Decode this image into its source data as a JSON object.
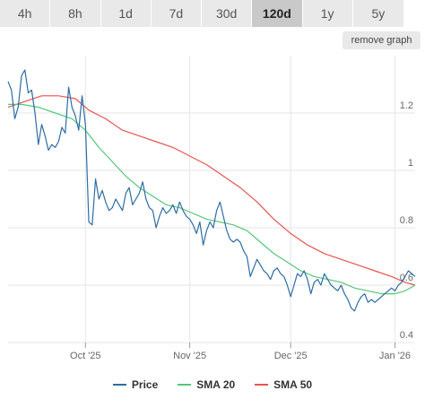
{
  "tabs": [
    {
      "label": "4h",
      "active": false
    },
    {
      "label": "8h",
      "active": false
    },
    {
      "label": "1d",
      "active": false
    },
    {
      "label": "7d",
      "active": false
    },
    {
      "label": "30d",
      "active": false
    },
    {
      "label": "120d",
      "active": true
    },
    {
      "label": "1y",
      "active": false
    },
    {
      "label": "5y",
      "active": false
    }
  ],
  "remove_graph_label": "remove graph",
  "colors": {
    "price": "#2e6da4",
    "sma20": "#52c77a",
    "sma50": "#e8544f",
    "grid": "#e6e6e6",
    "axis_text": "#666666"
  },
  "chart_data": {
    "type": "line",
    "title": "",
    "xlabel": "",
    "ylabel": "",
    "ylim": [
      0.4,
      1.4
    ],
    "yticks": [
      0.4,
      0.6,
      0.8,
      1,
      1.2
    ],
    "yticks_labels": [
      "0.4",
      "0.6",
      "0.8",
      "1",
      "1.2"
    ],
    "xlim": [
      "2025-09-08",
      "2026-01-07"
    ],
    "xticks": [
      {
        "date": "2025-10-01",
        "label": "Oct '25"
      },
      {
        "date": "2025-11-01",
        "label": "Nov '25"
      },
      {
        "date": "2025-12-01",
        "label": "Dec '25"
      },
      {
        "date": "2026-01-01",
        "label": "Jan '26"
      }
    ],
    "legend_position": "bottom",
    "grid": true,
    "series": [
      {
        "name": "Price",
        "color": "#2e6da4",
        "points": [
          [
            "2025-09-08",
            1.31
          ],
          [
            "2025-09-09",
            1.28
          ],
          [
            "2025-09-10",
            1.18
          ],
          [
            "2025-09-11",
            1.22
          ],
          [
            "2025-09-12",
            1.33
          ],
          [
            "2025-09-13",
            1.35
          ],
          [
            "2025-09-14",
            1.27
          ],
          [
            "2025-09-15",
            1.28
          ],
          [
            "2025-09-16",
            1.2
          ],
          [
            "2025-09-17",
            1.09
          ],
          [
            "2025-09-18",
            1.16
          ],
          [
            "2025-09-19",
            1.12
          ],
          [
            "2025-09-20",
            1.07
          ],
          [
            "2025-09-21",
            1.09
          ],
          [
            "2025-09-22",
            1.08
          ],
          [
            "2025-09-23",
            1.1
          ],
          [
            "2025-09-24",
            1.15
          ],
          [
            "2025-09-25",
            1.13
          ],
          [
            "2025-09-26",
            1.29
          ],
          [
            "2025-09-27",
            1.22
          ],
          [
            "2025-09-28",
            1.19
          ],
          [
            "2025-09-29",
            1.14
          ],
          [
            "2025-09-30",
            1.26
          ],
          [
            "2025-10-01",
            1.16
          ],
          [
            "2025-10-02",
            0.82
          ],
          [
            "2025-10-03",
            0.81
          ],
          [
            "2025-10-04",
            0.97
          ],
          [
            "2025-10-05",
            0.9
          ],
          [
            "2025-10-06",
            0.93
          ],
          [
            "2025-10-07",
            0.89
          ],
          [
            "2025-10-08",
            0.86
          ],
          [
            "2025-10-09",
            0.87
          ],
          [
            "2025-10-10",
            0.9
          ],
          [
            "2025-10-11",
            0.88
          ],
          [
            "2025-10-12",
            0.86
          ],
          [
            "2025-10-13",
            0.92
          ],
          [
            "2025-10-14",
            0.94
          ],
          [
            "2025-10-15",
            0.88
          ],
          [
            "2025-10-16",
            0.9
          ],
          [
            "2025-10-17",
            0.92
          ],
          [
            "2025-10-18",
            0.96
          ],
          [
            "2025-10-19",
            0.9
          ],
          [
            "2025-10-20",
            0.87
          ],
          [
            "2025-10-21",
            0.86
          ],
          [
            "2025-10-22",
            0.8
          ],
          [
            "2025-10-23",
            0.84
          ],
          [
            "2025-10-24",
            0.87
          ],
          [
            "2025-10-25",
            0.85
          ],
          [
            "2025-10-26",
            0.86
          ],
          [
            "2025-10-27",
            0.88
          ],
          [
            "2025-10-28",
            0.85
          ],
          [
            "2025-10-29",
            0.89
          ],
          [
            "2025-10-30",
            0.86
          ],
          [
            "2025-10-31",
            0.84
          ],
          [
            "2025-11-01",
            0.83
          ],
          [
            "2025-11-02",
            0.81
          ],
          [
            "2025-11-03",
            0.78
          ],
          [
            "2025-11-04",
            0.82
          ],
          [
            "2025-11-05",
            0.74
          ],
          [
            "2025-11-06",
            0.79
          ],
          [
            "2025-11-07",
            0.82
          ],
          [
            "2025-11-08",
            0.8
          ],
          [
            "2025-11-09",
            0.86
          ],
          [
            "2025-11-10",
            0.89
          ],
          [
            "2025-11-11",
            0.84
          ],
          [
            "2025-11-12",
            0.79
          ],
          [
            "2025-11-13",
            0.76
          ],
          [
            "2025-11-14",
            0.75
          ],
          [
            "2025-11-15",
            0.76
          ],
          [
            "2025-11-16",
            0.75
          ],
          [
            "2025-11-17",
            0.72
          ],
          [
            "2025-11-18",
            0.7
          ],
          [
            "2025-11-19",
            0.63
          ],
          [
            "2025-11-20",
            0.66
          ],
          [
            "2025-11-21",
            0.69
          ],
          [
            "2025-11-22",
            0.67
          ],
          [
            "2025-11-23",
            0.65
          ],
          [
            "2025-11-24",
            0.64
          ],
          [
            "2025-11-25",
            0.62
          ],
          [
            "2025-11-26",
            0.65
          ],
          [
            "2025-11-27",
            0.66
          ],
          [
            "2025-11-28",
            0.64
          ],
          [
            "2025-11-29",
            0.63
          ],
          [
            "2025-11-30",
            0.6
          ],
          [
            "2025-12-01",
            0.56
          ],
          [
            "2025-12-02",
            0.6
          ],
          [
            "2025-12-03",
            0.64
          ],
          [
            "2025-12-04",
            0.63
          ],
          [
            "2025-12-05",
            0.65
          ],
          [
            "2025-12-06",
            0.62
          ],
          [
            "2025-12-07",
            0.57
          ],
          [
            "2025-12-08",
            0.61
          ],
          [
            "2025-12-09",
            0.62
          ],
          [
            "2025-12-10",
            0.6
          ],
          [
            "2025-12-11",
            0.64
          ],
          [
            "2025-12-12",
            0.62
          ],
          [
            "2025-12-13",
            0.6
          ],
          [
            "2025-12-14",
            0.59
          ],
          [
            "2025-12-15",
            0.58
          ],
          [
            "2025-12-16",
            0.6
          ],
          [
            "2025-12-17",
            0.57
          ],
          [
            "2025-12-18",
            0.55
          ],
          [
            "2025-12-19",
            0.52
          ],
          [
            "2025-12-20",
            0.51
          ],
          [
            "2025-12-21",
            0.54
          ],
          [
            "2025-12-22",
            0.56
          ],
          [
            "2025-12-23",
            0.57
          ],
          [
            "2025-12-24",
            0.54
          ],
          [
            "2025-12-25",
            0.55
          ],
          [
            "2025-12-26",
            0.54
          ],
          [
            "2025-12-27",
            0.55
          ],
          [
            "2025-12-28",
            0.56
          ],
          [
            "2025-12-29",
            0.57
          ],
          [
            "2025-12-30",
            0.58
          ],
          [
            "2025-12-31",
            0.59
          ],
          [
            "2026-01-01",
            0.58
          ],
          [
            "2026-01-02",
            0.6
          ],
          [
            "2026-01-03",
            0.61
          ],
          [
            "2026-01-04",
            0.63
          ],
          [
            "2026-01-05",
            0.65
          ],
          [
            "2026-01-06",
            0.64
          ],
          [
            "2026-01-07",
            0.63
          ]
        ]
      },
      {
        "name": "SMA 20",
        "color": "#52c77a",
        "points": [
          [
            "2025-09-08",
            1.23
          ],
          [
            "2025-09-12",
            1.23
          ],
          [
            "2025-09-17",
            1.22
          ],
          [
            "2025-09-22",
            1.2
          ],
          [
            "2025-09-27",
            1.18
          ],
          [
            "2025-10-01",
            1.14
          ],
          [
            "2025-10-05",
            1.08
          ],
          [
            "2025-10-09",
            1.03
          ],
          [
            "2025-10-13",
            0.98
          ],
          [
            "2025-10-17",
            0.94
          ],
          [
            "2025-10-21",
            0.91
          ],
          [
            "2025-10-25",
            0.88
          ],
          [
            "2025-10-29",
            0.87
          ],
          [
            "2025-11-02",
            0.85
          ],
          [
            "2025-11-06",
            0.83
          ],
          [
            "2025-11-10",
            0.82
          ],
          [
            "2025-11-14",
            0.81
          ],
          [
            "2025-11-18",
            0.79
          ],
          [
            "2025-11-22",
            0.75
          ],
          [
            "2025-11-26",
            0.71
          ],
          [
            "2025-11-30",
            0.68
          ],
          [
            "2025-12-04",
            0.65
          ],
          [
            "2025-12-08",
            0.63
          ],
          [
            "2025-12-12",
            0.62
          ],
          [
            "2025-12-16",
            0.61
          ],
          [
            "2025-12-20",
            0.59
          ],
          [
            "2025-12-24",
            0.58
          ],
          [
            "2025-12-28",
            0.57
          ],
          [
            "2026-01-01",
            0.57
          ],
          [
            "2026-01-04",
            0.58
          ],
          [
            "2026-01-07",
            0.6
          ]
        ]
      },
      {
        "name": "SMA 50",
        "color": "#e8544f",
        "points": [
          [
            "2025-09-08",
            1.22
          ],
          [
            "2025-09-13",
            1.24
          ],
          [
            "2025-09-18",
            1.26
          ],
          [
            "2025-09-23",
            1.26
          ],
          [
            "2025-09-28",
            1.25
          ],
          [
            "2025-10-02",
            1.21
          ],
          [
            "2025-10-07",
            1.18
          ],
          [
            "2025-10-12",
            1.14
          ],
          [
            "2025-10-17",
            1.12
          ],
          [
            "2025-10-22",
            1.1
          ],
          [
            "2025-10-27",
            1.08
          ],
          [
            "2025-11-01",
            1.05
          ],
          [
            "2025-11-06",
            1.02
          ],
          [
            "2025-11-11",
            0.98
          ],
          [
            "2025-11-16",
            0.94
          ],
          [
            "2025-11-21",
            0.89
          ],
          [
            "2025-11-26",
            0.83
          ],
          [
            "2025-12-01",
            0.78
          ],
          [
            "2025-12-06",
            0.74
          ],
          [
            "2025-12-11",
            0.71
          ],
          [
            "2025-12-16",
            0.69
          ],
          [
            "2025-12-21",
            0.67
          ],
          [
            "2025-12-26",
            0.65
          ],
          [
            "2025-12-31",
            0.63
          ],
          [
            "2026-01-04",
            0.61
          ],
          [
            "2026-01-07",
            0.6
          ]
        ]
      }
    ]
  }
}
